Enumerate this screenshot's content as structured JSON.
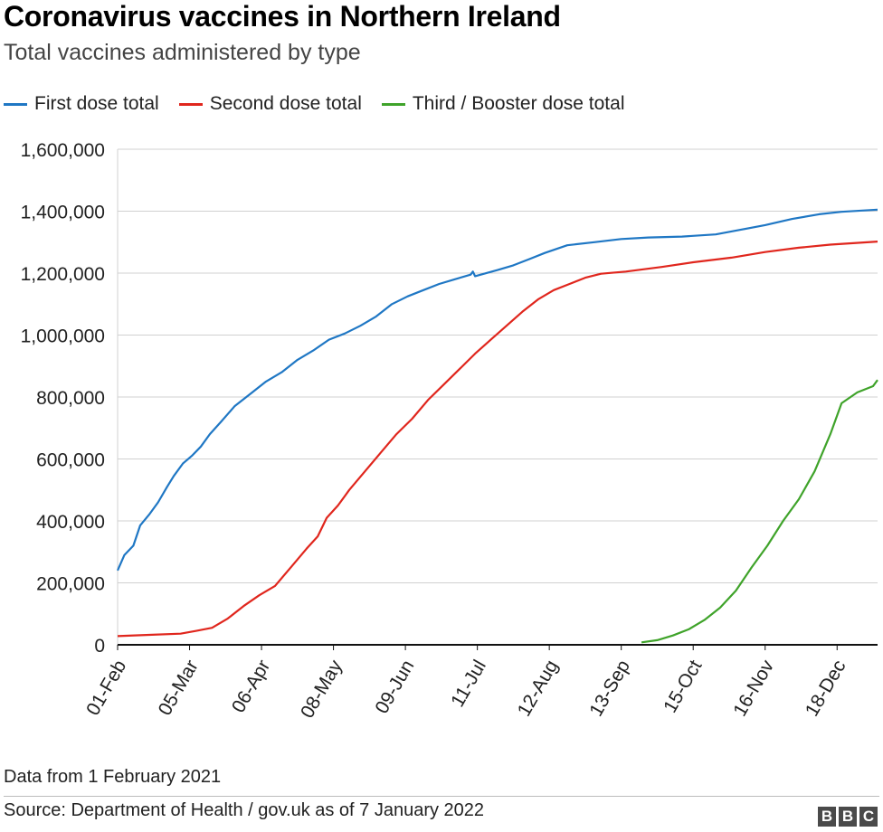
{
  "title": "Coronavirus vaccines in Northern Ireland",
  "subtitle": "Total vaccines administered by type",
  "note": "Data from 1 February 2021",
  "source": "Source: Department of Health / gov.uk as of 7 January 2022",
  "logo": [
    "B",
    "B",
    "C"
  ],
  "chart_data": {
    "type": "line",
    "title": "Coronavirus vaccines in Northern Ireland",
    "subtitle": "Total vaccines administered by type",
    "legend_position": "top",
    "grid": true,
    "ylim": [
      0,
      1600000
    ],
    "y_ticks": [
      0,
      200000,
      400000,
      600000,
      800000,
      1000000,
      1200000,
      1400000,
      1600000
    ],
    "y_tick_labels": [
      "0",
      "200,000",
      "400,000",
      "600,000",
      "800,000",
      "1,000,000",
      "1,200,000",
      "1,400,000",
      "1,600,000"
    ],
    "x_tick_labels": [
      "01-Feb",
      "05-Mar",
      "06-Apr",
      "08-May",
      "09-Jun",
      "11-Jul",
      "12-Aug",
      "13-Sep",
      "15-Oct",
      "16-Nov",
      "18-Dec"
    ],
    "x_tick_dates": [
      "2021-02-01",
      "2021-03-05",
      "2021-04-06",
      "2021-05-08",
      "2021-06-09",
      "2021-07-11",
      "2021-08-12",
      "2021-09-13",
      "2021-10-15",
      "2021-11-16",
      "2021-12-18"
    ],
    "x_range": [
      "2021-02-01",
      "2022-01-05"
    ],
    "series": [
      {
        "name": "First dose total",
        "color": "#1f77c4",
        "points": [
          [
            "2021-02-01",
            240000
          ],
          [
            "2021-02-04",
            290000
          ],
          [
            "2021-02-08",
            320000
          ],
          [
            "2021-02-11",
            385000
          ],
          [
            "2021-02-15",
            420000
          ],
          [
            "2021-02-19",
            460000
          ],
          [
            "2021-02-23",
            510000
          ],
          [
            "2021-02-26",
            545000
          ],
          [
            "2021-03-02",
            585000
          ],
          [
            "2021-03-06",
            610000
          ],
          [
            "2021-03-10",
            640000
          ],
          [
            "2021-03-14",
            680000
          ],
          [
            "2021-03-19",
            720000
          ],
          [
            "2021-03-25",
            770000
          ],
          [
            "2021-04-01",
            810000
          ],
          [
            "2021-04-08",
            850000
          ],
          [
            "2021-04-15",
            880000
          ],
          [
            "2021-04-22",
            920000
          ],
          [
            "2021-04-29",
            950000
          ],
          [
            "2021-05-06",
            985000
          ],
          [
            "2021-05-13",
            1005000
          ],
          [
            "2021-05-20",
            1030000
          ],
          [
            "2021-05-27",
            1060000
          ],
          [
            "2021-06-03",
            1100000
          ],
          [
            "2021-06-10",
            1125000
          ],
          [
            "2021-06-17",
            1145000
          ],
          [
            "2021-06-24",
            1165000
          ],
          [
            "2021-07-01",
            1180000
          ],
          [
            "2021-07-08",
            1195000
          ],
          [
            "2021-07-09",
            1205000
          ],
          [
            "2021-07-10",
            1190000
          ],
          [
            "2021-07-20",
            1210000
          ],
          [
            "2021-07-27",
            1225000
          ],
          [
            "2021-08-03",
            1245000
          ],
          [
            "2021-08-10",
            1265000
          ],
          [
            "2021-08-20",
            1290000
          ],
          [
            "2021-09-01",
            1300000
          ],
          [
            "2021-09-13",
            1310000
          ],
          [
            "2021-09-25",
            1315000
          ],
          [
            "2021-10-10",
            1318000
          ],
          [
            "2021-10-25",
            1325000
          ],
          [
            "2021-11-05",
            1340000
          ],
          [
            "2021-11-16",
            1355000
          ],
          [
            "2021-11-28",
            1375000
          ],
          [
            "2021-12-10",
            1390000
          ],
          [
            "2021-12-20",
            1398000
          ],
          [
            "2022-01-05",
            1405000
          ]
        ]
      },
      {
        "name": "Second dose total",
        "color": "#e0261d",
        "points": [
          [
            "2021-02-01",
            28000
          ],
          [
            "2021-02-15",
            32000
          ],
          [
            "2021-03-01",
            36000
          ],
          [
            "2021-03-08",
            45000
          ],
          [
            "2021-03-15",
            55000
          ],
          [
            "2021-03-22",
            85000
          ],
          [
            "2021-03-29",
            125000
          ],
          [
            "2021-04-05",
            160000
          ],
          [
            "2021-04-12",
            190000
          ],
          [
            "2021-04-19",
            250000
          ],
          [
            "2021-04-26",
            310000
          ],
          [
            "2021-05-01",
            350000
          ],
          [
            "2021-05-05",
            410000
          ],
          [
            "2021-05-10",
            450000
          ],
          [
            "2021-05-15",
            500000
          ],
          [
            "2021-05-22",
            560000
          ],
          [
            "2021-05-29",
            620000
          ],
          [
            "2021-06-05",
            680000
          ],
          [
            "2021-06-12",
            730000
          ],
          [
            "2021-06-19",
            790000
          ],
          [
            "2021-06-26",
            840000
          ],
          [
            "2021-07-03",
            890000
          ],
          [
            "2021-07-10",
            940000
          ],
          [
            "2021-07-17",
            985000
          ],
          [
            "2021-07-24",
            1030000
          ],
          [
            "2021-07-31",
            1075000
          ],
          [
            "2021-08-07",
            1115000
          ],
          [
            "2021-08-14",
            1145000
          ],
          [
            "2021-08-21",
            1165000
          ],
          [
            "2021-08-28",
            1185000
          ],
          [
            "2021-09-04",
            1198000
          ],
          [
            "2021-09-15",
            1205000
          ],
          [
            "2021-10-01",
            1220000
          ],
          [
            "2021-10-15",
            1235000
          ],
          [
            "2021-11-01",
            1250000
          ],
          [
            "2021-11-16",
            1268000
          ],
          [
            "2021-12-01",
            1282000
          ],
          [
            "2021-12-15",
            1292000
          ],
          [
            "2022-01-05",
            1302000
          ]
        ]
      },
      {
        "name": "Third / Booster dose total",
        "color": "#3fa32a",
        "points": [
          [
            "2021-09-22",
            8000
          ],
          [
            "2021-09-29",
            15000
          ],
          [
            "2021-10-06",
            30000
          ],
          [
            "2021-10-13",
            50000
          ],
          [
            "2021-10-20",
            80000
          ],
          [
            "2021-10-27",
            120000
          ],
          [
            "2021-11-03",
            175000
          ],
          [
            "2021-11-10",
            250000
          ],
          [
            "2021-11-17",
            320000
          ],
          [
            "2021-11-24",
            400000
          ],
          [
            "2021-12-01",
            470000
          ],
          [
            "2021-12-08",
            560000
          ],
          [
            "2021-12-15",
            680000
          ],
          [
            "2021-12-20",
            780000
          ],
          [
            "2021-12-27",
            815000
          ],
          [
            "2022-01-03",
            835000
          ],
          [
            "2022-01-05",
            855000
          ]
        ]
      }
    ]
  }
}
